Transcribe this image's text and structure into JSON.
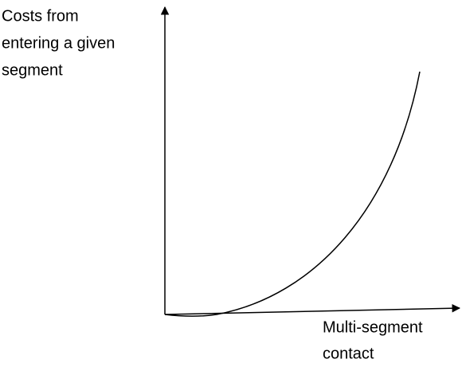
{
  "y_axis_label": [
    "Costs from",
    "entering a given",
    "segment"
  ],
  "x_axis_label": [
    "Multi-segment",
    "contact"
  ]
}
